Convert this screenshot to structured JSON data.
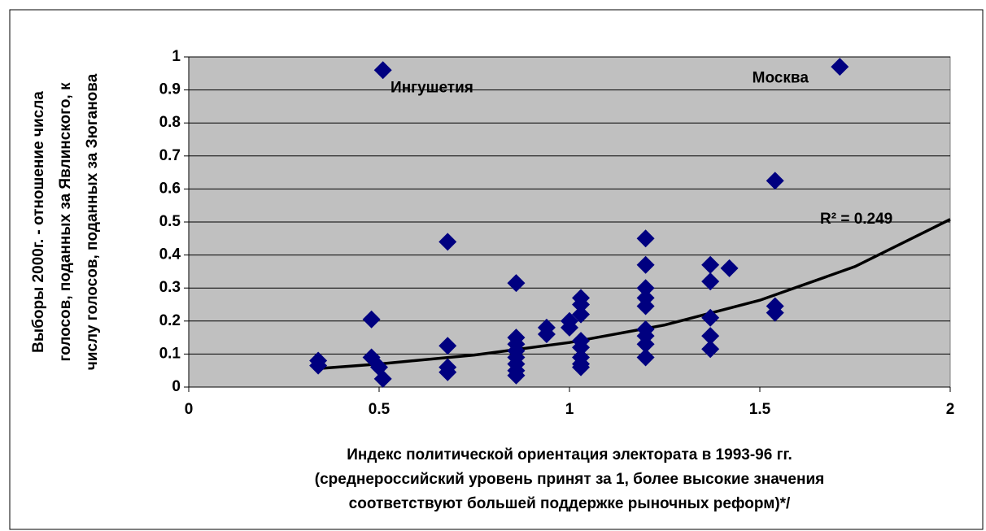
{
  "chart_data": {
    "type": "scatter",
    "y_title_lines": [
      "Выборы 2000г. - отношение числа",
      "голосов, поданных за Явлинского, к",
      "числу голосов, поданных за Зюганова"
    ],
    "x_title_lines": [
      "Индекс политической ориентация электората в 1993-96 гг.",
      "(среднероссийский уровень принят за 1, более высокие значения",
      "соответствуют большей поддержке рыночных реформ)*/"
    ],
    "x": [
      0.34,
      0.34,
      0.48,
      0.48,
      0.5,
      0.51,
      0.51,
      0.68,
      0.68,
      0.68,
      0.68,
      0.86,
      0.86,
      0.86,
      0.86,
      0.86,
      0.86,
      0.86,
      0.86,
      0.94,
      0.94,
      1.0,
      1.0,
      1.03,
      1.03,
      1.03,
      1.03,
      1.03,
      1.03,
      1.03,
      1.03,
      1.2,
      1.2,
      1.2,
      1.2,
      1.2,
      1.2,
      1.2,
      1.2,
      1.2,
      1.37,
      1.37,
      1.37,
      1.37,
      1.37,
      1.42,
      1.54,
      1.54,
      1.54,
      1.71
    ],
    "values": [
      0.08,
      0.065,
      0.205,
      0.09,
      0.06,
      0.025,
      0.96,
      0.44,
      0.125,
      0.06,
      0.045,
      0.315,
      0.15,
      0.13,
      0.11,
      0.09,
      0.07,
      0.05,
      0.035,
      0.18,
      0.16,
      0.2,
      0.18,
      0.27,
      0.25,
      0.22,
      0.14,
      0.12,
      0.09,
      0.07,
      0.06,
      0.45,
      0.37,
      0.3,
      0.27,
      0.245,
      0.175,
      0.155,
      0.13,
      0.09,
      0.37,
      0.32,
      0.21,
      0.155,
      0.115,
      0.36,
      0.625,
      0.245,
      0.225,
      0.97
    ],
    "color": "#000080",
    "trendline": {
      "x": [
        0.34,
        0.5,
        0.75,
        1.0,
        1.25,
        1.5,
        1.75,
        2.0
      ],
      "values": [
        0.056,
        0.07,
        0.097,
        0.135,
        0.188,
        0.263,
        0.365,
        0.508
      ],
      "color": "#000000",
      "label": "R² = 0.249"
    },
    "annotations": [
      {
        "text": "Ингушетия",
        "x": 0.53,
        "y": 0.905
      },
      {
        "text": "Москва",
        "x": 1.48,
        "y": 0.935
      }
    ],
    "xlim": [
      0,
      2
    ],
    "ylim": [
      0,
      1
    ],
    "xticks": [
      0,
      0.5,
      1,
      1.5,
      2
    ],
    "yticks": [
      0,
      0.1,
      0.2,
      0.3,
      0.4,
      0.5,
      0.6,
      0.7,
      0.8,
      0.9,
      1
    ],
    "grid": true,
    "plot_background": "#c0c0c0"
  }
}
